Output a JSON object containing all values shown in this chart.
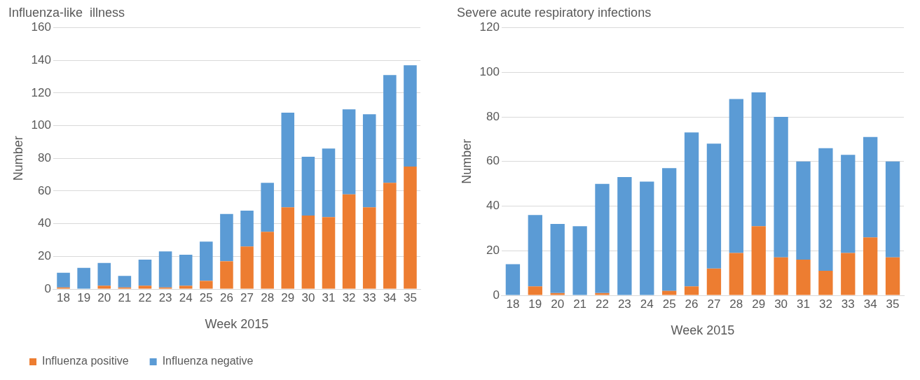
{
  "chart_data": [
    {
      "type": "bar",
      "title": "Influenza-like  illness",
      "xlabel": "Week 2015",
      "ylabel": "Number",
      "stacked": true,
      "categories": [
        "18",
        "19",
        "20",
        "21",
        "22",
        "23",
        "24",
        "25",
        "26",
        "27",
        "28",
        "29",
        "30",
        "31",
        "32",
        "33",
        "34",
        "35"
      ],
      "ylim": [
        0,
        160
      ],
      "yticks": [
        0,
        20,
        40,
        60,
        80,
        100,
        120,
        140,
        160
      ],
      "grid": "y",
      "legend": "bottom left",
      "series": [
        {
          "name": "Influenza positive",
          "color": "#ed7d31",
          "values": [
            1,
            0,
            2,
            1,
            2,
            1,
            2,
            5,
            17,
            26,
            35,
            50,
            45,
            44,
            58,
            50,
            65,
            75
          ]
        },
        {
          "name": "Influenza negative",
          "color": "#5b9bd5",
          "values": [
            9,
            13,
            14,
            7,
            16,
            22,
            19,
            24,
            29,
            22,
            30,
            58,
            36,
            42,
            52,
            57,
            66,
            62
          ]
        }
      ]
    },
    {
      "type": "bar",
      "title": "Severe acute respiratory infections",
      "xlabel": "Week 2015",
      "ylabel": "Number",
      "stacked": true,
      "categories": [
        "18",
        "19",
        "20",
        "21",
        "22",
        "23",
        "24",
        "25",
        "26",
        "27",
        "28",
        "29",
        "30",
        "31",
        "32",
        "33",
        "34",
        "35"
      ],
      "ylim": [
        0,
        120
      ],
      "yticks": [
        0,
        20,
        40,
        60,
        80,
        100,
        120
      ],
      "grid": "y",
      "series": [
        {
          "color": "#ed7d31",
          "values": [
            0,
            4,
            1,
            0,
            1,
            0,
            0,
            2,
            4,
            12,
            19,
            31,
            17,
            16,
            11,
            19,
            26,
            17
          ]
        },
        {
          "color": "#5b9bd5",
          "values": [
            14,
            32,
            31,
            31,
            49,
            53,
            51,
            55,
            69,
            56,
            69,
            60,
            63,
            44,
            55,
            44,
            45,
            43
          ]
        }
      ]
    }
  ]
}
